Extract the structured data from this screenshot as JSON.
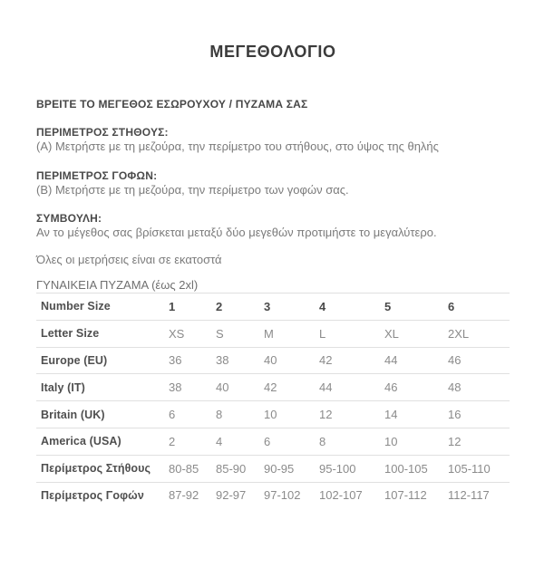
{
  "page": {
    "title": "ΜΕΓΕΘΟΛΟΓΙΟ",
    "find_size_heading": "ΒΡΕΙΤΕ ΤΟ ΜΕΓΕΘΟΣ ΕΣΩΡΟΥΧΟΥ / ΠΥΖΑΜΑ ΣΑΣ"
  },
  "sections": [
    {
      "heading": "ΠΕΡΙΜΕΤΡΟΣ ΣΤΗΘΟΥΣ:",
      "body": "(Α) Μετρήστε με τη μεζούρα, την περίμετρο του στήθους, στο ύψος της θηλής"
    },
    {
      "heading": "ΠΕΡΙΜΕΤΡΟΣ ΓΟΦΩΝ:",
      "body": "(Β) Μετρήστε με τη μεζούρα, την περίμετρο των γοφών σας."
    },
    {
      "heading": "ΣΥΜΒΟΥΛΗ:",
      "body": "Αν το μέγεθος σας βρίσκεται μεταξύ δύο μεγεθών προτιμήστε το μεγαλύτερο."
    }
  ],
  "note": "Όλες οι μετρήσεις είναι σε εκατοστά",
  "table": {
    "caption": "ΓΥΝΑΙΚΕΙΑ ΠΥΖΑΜΑ (έως 2xl)",
    "rows": [
      {
        "label": "Number Size",
        "header": true,
        "values": [
          "1",
          "2",
          "3",
          "4",
          "5",
          "6"
        ]
      },
      {
        "label": "Letter Size",
        "header": false,
        "values": [
          "XS",
          "S",
          "M",
          "L",
          "XL",
          "2XL"
        ]
      },
      {
        "label": "Europe (EU)",
        "header": false,
        "values": [
          "36",
          "38",
          "40",
          "42",
          "44",
          "46"
        ]
      },
      {
        "label": "Italy (IT)",
        "header": false,
        "values": [
          "38",
          "40",
          "42",
          "44",
          "46",
          "48"
        ]
      },
      {
        "label": "Britain (UK)",
        "header": false,
        "values": [
          "6",
          "8",
          "10",
          "12",
          "14",
          "16"
        ]
      },
      {
        "label": "America (USA)",
        "header": false,
        "values": [
          "2",
          "4",
          "6",
          "8",
          "10",
          "12"
        ]
      },
      {
        "label": "Περίμετρος Στήθους",
        "header": false,
        "values": [
          "80-85",
          "85-90",
          "90-95",
          "95-100",
          "100-105",
          "105-110"
        ]
      },
      {
        "label": "Περίμετρος Γοφών",
        "header": false,
        "values": [
          "87-92",
          "92-97",
          "97-102",
          "102-107",
          "107-112",
          "112-117"
        ]
      }
    ]
  },
  "colors": {
    "title_text": "#3b3b3b",
    "heading_text": "#4a4a4a",
    "body_text": "#7b7b7b",
    "table_label_text": "#4f4f4f",
    "table_value_text": "#8b8b8b",
    "divider": "#e0e0e0",
    "background": "#ffffff"
  }
}
